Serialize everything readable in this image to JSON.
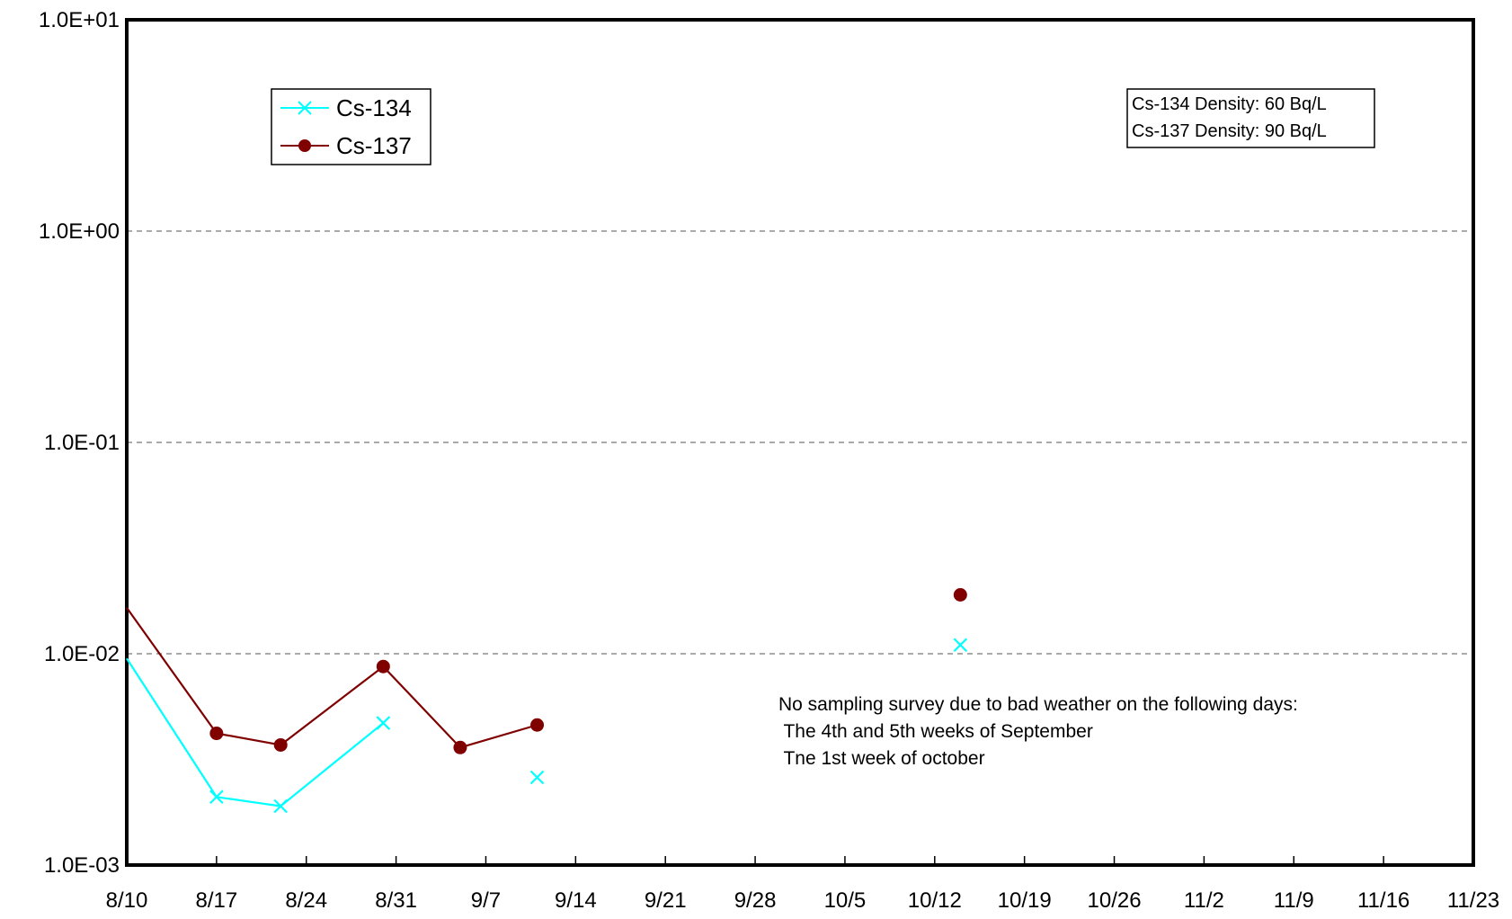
{
  "chart_data": {
    "type": "line",
    "title": "",
    "xlabel": "",
    "ylabel": "",
    "yscale": "log",
    "ylim": [
      "1.0E-03",
      "1.0E+01"
    ],
    "grid": "horizontal dashed gridlines at each decade",
    "x_tick_labels": [
      "8/10",
      "8/17",
      "8/24",
      "8/31",
      "9/7",
      "9/14",
      "9/21",
      "9/28",
      "10/5",
      "10/12",
      "10/19",
      "10/26",
      "11/2",
      "11/9",
      "11/16",
      "11/23"
    ],
    "y_tick_labels": [
      "1.0E-03",
      "1.0E-02",
      "1.0E-01",
      "1.0E+00",
      "1.0E+01"
    ],
    "legend_position": "top-left",
    "series": [
      {
        "name": "Cs-134",
        "color": "#00FFFF",
        "marker": "x",
        "segments": [
          [
            {
              "x": "8/10",
              "y": 0.0095
            },
            {
              "x": "8/17",
              "y": 0.0021
            },
            {
              "x": "8/22",
              "y": 0.0019
            },
            {
              "x": "8/30",
              "y": 0.0047
            }
          ],
          [
            {
              "x": "9/11",
              "y": 0.0026
            }
          ],
          [
            {
              "x": "10/14",
              "y": 0.011
            }
          ]
        ]
      },
      {
        "name": "Cs-137",
        "color": "#800000",
        "marker": "circle",
        "segments": [
          [
            {
              "x": "8/10",
              "y": 0.0165
            },
            {
              "x": "8/17",
              "y": 0.0042
            },
            {
              "x": "8/22",
              "y": 0.0037
            },
            {
              "x": "8/30",
              "y": 0.0087
            },
            {
              "x": "9/5",
              "y": 0.0036
            },
            {
              "x": "9/11",
              "y": 0.0046
            }
          ],
          [
            {
              "x": "10/14",
              "y": 0.019
            }
          ]
        ]
      }
    ],
    "density_box": [
      "Cs-134 Density: 60 Bq/L",
      "Cs-137 Density: 90 Bq/L"
    ],
    "note": [
      "No sampling survey due to bad weather on the following days:",
      " The 4th and 5th weeks of September",
      " Tne 1st week of october"
    ]
  }
}
